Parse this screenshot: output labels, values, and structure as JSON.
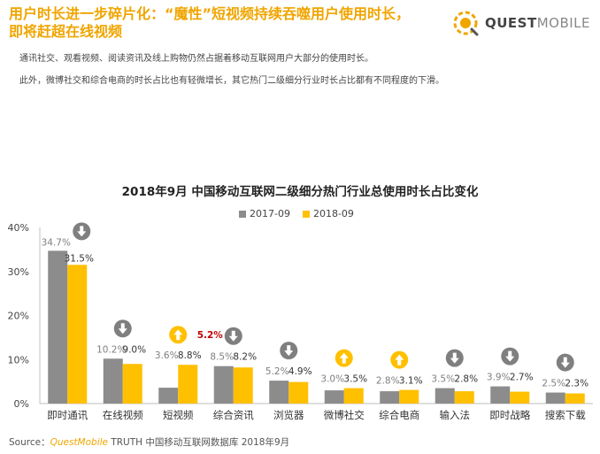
{
  "header": {
    "headline_line1": "用户时长进一步碎片化：“魔性”短视频持续吞噬用户使用时长，",
    "headline_line2": "即将赶超在线视频",
    "paragraph1": "通讯社交、观看视频、阅读资讯及线上购物仍然占据着移动互联网用户大部分的使用时长。",
    "paragraph2": "此外，微博社交和综合电商的时长占比也有轻微增长，其它热门二级细分行业时长占比都有不同程度的下滑。"
  },
  "logo": {
    "part1": "QUEST",
    "part2": "MOBILE"
  },
  "source": {
    "label": "Source：",
    "brand": "QuestMobile",
    "rest": " TRUTH 中国移动互联网数据库 2018年9月"
  },
  "colors": {
    "brand": "#f0a500",
    "series_2017": "#8c8c8c",
    "series_2018": "#ffc000",
    "arrow_down": "#7f7f7f",
    "arrow_up": "#ffc000",
    "highlight_label": "#c00000"
  },
  "chart_data": {
    "type": "bar",
    "title": "2018年9月 中国移动互联网二级细分热门行业总使用时长占比变化",
    "categories": [
      "即时通讯",
      "在线视频",
      "短视频",
      "综合资讯",
      "浏览器",
      "微博社交",
      "综合电商",
      "输入法",
      "即时战略",
      "搜索下载"
    ],
    "series": [
      {
        "name": "2017-09",
        "values": [
          34.7,
          10.2,
          3.6,
          8.5,
          5.2,
          3.0,
          2.8,
          3.5,
          3.9,
          2.5
        ],
        "labels": [
          "34.7%",
          "10.2%",
          "3.6%",
          "8.5%",
          "5.2%",
          "3.0%",
          "2.8%",
          "3.5%",
          "3.9%",
          "2.5%"
        ]
      },
      {
        "name": "2018-09",
        "values": [
          31.5,
          9.0,
          8.8,
          8.2,
          4.9,
          3.5,
          3.1,
          2.8,
          2.7,
          2.3
        ],
        "labels": [
          "31.5%",
          "9.0%",
          "8.8%",
          "8.2%",
          "4.9%",
          "3.5%",
          "3.1%",
          "2.8%",
          "2.7%",
          "2.3%"
        ]
      }
    ],
    "trend": [
      "down",
      "down",
      "up",
      "down",
      "down",
      "up",
      "up",
      "down",
      "down",
      "down"
    ],
    "annotations": [
      {
        "category": "短视频",
        "text": "5.2%"
      }
    ],
    "ylim": [
      0,
      40
    ],
    "yticks": [
      "0%",
      "10%",
      "20%",
      "30%",
      "40%"
    ],
    "grid": false,
    "legend_position": "top-center"
  }
}
